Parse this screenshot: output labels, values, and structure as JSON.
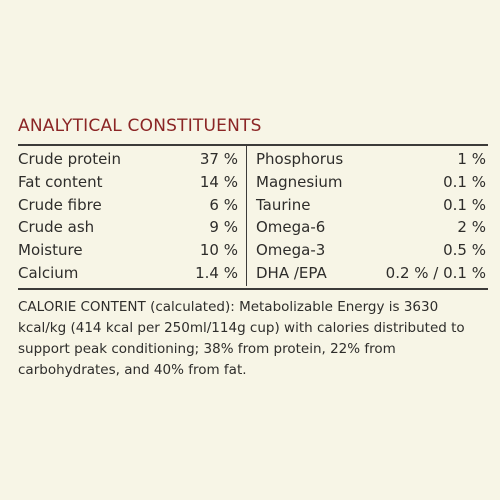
{
  "heading": "ANALYTICAL CONSTITUENTS",
  "colors": {
    "background": "#f7f5e6",
    "heading": "#8b2525",
    "text": "#2e2d2b",
    "rule": "#3c3b39"
  },
  "left_column": [
    {
      "name": "Crude protein",
      "value": "37 %"
    },
    {
      "name": "Fat content",
      "value": "14 %"
    },
    {
      "name": "Crude fibre",
      "value": "6 %"
    },
    {
      "name": "Crude ash",
      "value": "9 %"
    },
    {
      "name": "Moisture",
      "value": "10 %"
    },
    {
      "name": "Calcium",
      "value": "1.4 %"
    }
  ],
  "right_column": [
    {
      "name": "Phosphorus",
      "value": "1 %"
    },
    {
      "name": "Magnesium",
      "value": "0.1 %"
    },
    {
      "name": "Taurine",
      "value": "0.1 %"
    },
    {
      "name": "Omega-6",
      "value": "2 %"
    },
    {
      "name": "Omega-3",
      "value": "0.5 %"
    },
    {
      "name": "DHA /EPA",
      "value": "0.2 % / 0.1 %"
    }
  ],
  "calorie_content": "CALORIE CONTENT (calculated): Metabolizable Energy is 3630 kcal/kg (414 kcal per 250ml/114g cup) with calories distributed to support peak conditioning; 38% from protein, 22% from carbohydrates, and 40% from fat."
}
